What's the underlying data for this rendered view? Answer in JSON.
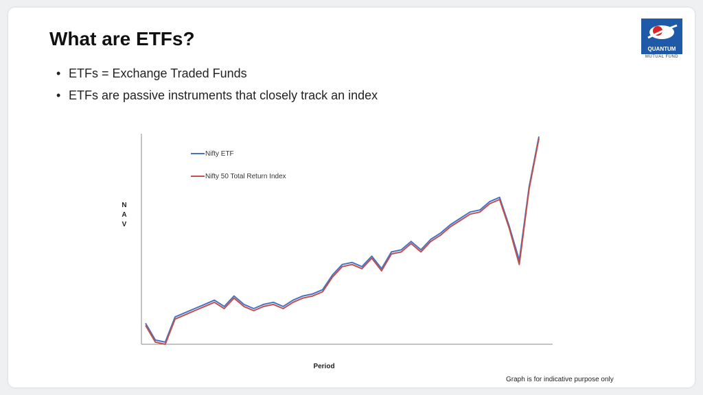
{
  "slide": {
    "title": "What are ETFs?",
    "bullets": [
      "ETFs = Exchange Traded Funds",
      "ETFs are passive instruments that closely track an index"
    ],
    "footnote": "Graph is for indicative purpose only"
  },
  "logo": {
    "name": "QUANTUM",
    "subtitle": "MUTUAL FUND",
    "brand_color": "#1e5aa8"
  },
  "chart_data": {
    "type": "line",
    "title": "",
    "xlabel": "Period",
    "ylabel": "NAV",
    "grid": false,
    "legend_position": "top-left",
    "x_ticks_labeled": false,
    "y_ticks_labeled": false,
    "x": [
      0,
      1,
      2,
      3,
      4,
      5,
      6,
      7,
      8,
      9,
      10,
      11,
      12,
      13,
      14,
      15,
      16,
      17,
      18,
      19,
      20,
      21,
      22,
      23,
      24,
      25,
      26,
      27,
      28,
      29,
      30,
      31,
      32,
      33,
      34,
      35,
      36,
      37,
      38,
      39,
      40
    ],
    "ylim": [
      0,
      100
    ],
    "series": [
      {
        "name": "Nifty ETF",
        "color": "#4472c4",
        "values": [
          10,
          2,
          1,
          13,
          15,
          17,
          19,
          21,
          18,
          23,
          19,
          17,
          19,
          20,
          18,
          21,
          23,
          24,
          26,
          33,
          38,
          39,
          37,
          42,
          36,
          44,
          45,
          49,
          45,
          50,
          53,
          57,
          60,
          63,
          64,
          68,
          70,
          56,
          40,
          75,
          99
        ]
      },
      {
        "name": "Nifty 50 Total Return Index",
        "color": "#c0504d",
        "values": [
          9,
          1,
          0,
          12,
          14,
          16,
          18,
          20,
          17,
          22,
          18,
          16,
          18,
          19,
          17,
          20,
          22,
          23,
          25,
          32,
          37,
          38,
          36,
          41,
          35,
          43,
          44,
          48,
          44,
          49,
          52,
          56,
          59,
          62,
          63,
          67,
          69,
          55,
          38,
          74,
          98
        ]
      }
    ]
  }
}
